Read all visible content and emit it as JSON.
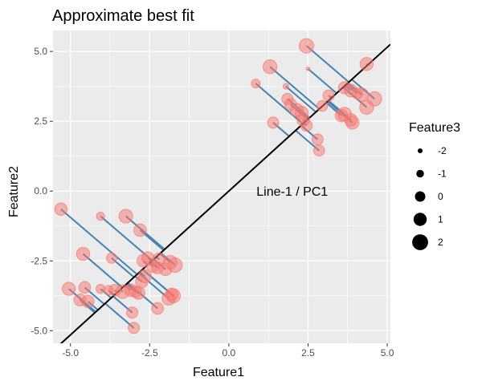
{
  "chart_data": {
    "type": "scatter",
    "title": "Approximate best fit",
    "xlabel": "Feature1",
    "ylabel": "Feature2",
    "xlim": [
      -5.55,
      5.1
    ],
    "ylim": [
      -5.45,
      5.75
    ],
    "x_ticks": [
      -5.0,
      -2.5,
      0.0,
      2.5,
      5.0
    ],
    "x_tick_labels": [
      "-5.0",
      "-2.5",
      "0.0",
      "2.5",
      "5.0"
    ],
    "y_ticks": [
      -5.0,
      -2.5,
      0.0,
      2.5,
      5.0
    ],
    "y_tick_labels": [
      "-5.0",
      "-2.5",
      "0.0",
      "2.5",
      "5.0"
    ],
    "grid": true,
    "background": "#ebebeb",
    "point_color": "#f8766d",
    "segment_color": "#4682b4",
    "line_color": "#000000",
    "fit_line": {
      "slope": 1.03,
      "intercept": 0.0
    },
    "annotation": {
      "text": "Line-1 / PC1",
      "x": 2.0,
      "y": 0.0
    },
    "legend": {
      "title": "Feature3",
      "position": "right",
      "entries": [
        {
          "label": "-2",
          "value": -2
        },
        {
          "label": "-1",
          "value": -1
        },
        {
          "label": "0",
          "value": 0
        },
        {
          "label": "1",
          "value": 1
        },
        {
          "label": "2",
          "value": 2
        }
      ]
    },
    "size_range": [
      -2.6,
      2.4
    ],
    "points": [
      {
        "x": 2.45,
        "y": 5.2,
        "size": 1.5
      },
      {
        "x": 1.3,
        "y": 4.45,
        "size": 1.3
      },
      {
        "x": 4.35,
        "y": 4.55,
        "size": 1.0
      },
      {
        "x": 2.5,
        "y": 4.38,
        "size": -2.4
      },
      {
        "x": 0.85,
        "y": 3.85,
        "size": -0.6
      },
      {
        "x": 1.8,
        "y": 3.75,
        "size": -1.7
      },
      {
        "x": 3.65,
        "y": 3.7,
        "size": 0.6
      },
      {
        "x": 3.85,
        "y": 3.6,
        "size": 0.9
      },
      {
        "x": 4.05,
        "y": 3.5,
        "size": 0.2
      },
      {
        "x": 4.2,
        "y": 3.45,
        "size": 1.0
      },
      {
        "x": 3.15,
        "y": 3.42,
        "size": 0.3
      },
      {
        "x": 4.6,
        "y": 3.3,
        "size": 1.4
      },
      {
        "x": 1.85,
        "y": 3.3,
        "size": 0.3
      },
      {
        "x": 1.95,
        "y": 3.1,
        "size": 0.6
      },
      {
        "x": 2.95,
        "y": 3.05,
        "size": 0.1
      },
      {
        "x": 4.35,
        "y": 3.0,
        "size": 1.3
      },
      {
        "x": 2.15,
        "y": 2.9,
        "size": 1.0
      },
      {
        "x": 2.3,
        "y": 2.8,
        "size": 1.0
      },
      {
        "x": 3.65,
        "y": 2.75,
        "size": 1.3
      },
      {
        "x": 3.55,
        "y": 2.7,
        "size": 0.7
      },
      {
        "x": 2.35,
        "y": 2.55,
        "size": 0.8
      },
      {
        "x": 3.85,
        "y": 2.55,
        "size": 0.8
      },
      {
        "x": 1.4,
        "y": 2.45,
        "size": 0.3
      },
      {
        "x": 3.9,
        "y": 2.45,
        "size": 1.0
      },
      {
        "x": 2.45,
        "y": 2.35,
        "size": 0.5
      },
      {
        "x": 2.8,
        "y": 1.85,
        "size": 0.3
      },
      {
        "x": 2.85,
        "y": 1.45,
        "size": 0.2
      },
      {
        "x": -5.3,
        "y": -0.65,
        "size": 0.7
      },
      {
        "x": -4.05,
        "y": -0.9,
        "size": -0.8
      },
      {
        "x": -3.25,
        "y": -0.9,
        "size": 1.2
      },
      {
        "x": -2.8,
        "y": -1.4,
        "size": 0.8
      },
      {
        "x": -4.6,
        "y": -2.25,
        "size": 1.0
      },
      {
        "x": -3.7,
        "y": -2.4,
        "size": 0.0
      },
      {
        "x": -2.55,
        "y": -2.4,
        "size": 0.8
      },
      {
        "x": -2.2,
        "y": -2.45,
        "size": 1.0
      },
      {
        "x": -2.7,
        "y": -2.5,
        "size": 0.8
      },
      {
        "x": -1.85,
        "y": -2.55,
        "size": 1.2
      },
      {
        "x": -1.7,
        "y": -2.65,
        "size": 1.5
      },
      {
        "x": -2.4,
        "y": -2.7,
        "size": 0.5
      },
      {
        "x": -2.25,
        "y": -2.75,
        "size": 0.5
      },
      {
        "x": -2.0,
        "y": -2.8,
        "size": 0.8
      },
      {
        "x": -2.65,
        "y": -3.05,
        "size": 1.0
      },
      {
        "x": -2.75,
        "y": -3.25,
        "size": 0.7
      },
      {
        "x": -5.05,
        "y": -3.5,
        "size": 1.0
      },
      {
        "x": -4.55,
        "y": -3.45,
        "size": 0.5
      },
      {
        "x": -4.05,
        "y": -3.5,
        "size": -0.5
      },
      {
        "x": -3.8,
        "y": -3.55,
        "size": -0.3
      },
      {
        "x": -3.6,
        "y": -3.55,
        "size": 0.5
      },
      {
        "x": -3.35,
        "y": -3.6,
        "size": 1.2
      },
      {
        "x": -3.1,
        "y": -3.55,
        "size": 0.7
      },
      {
        "x": -2.95,
        "y": -3.6,
        "size": 0.5
      },
      {
        "x": -2.85,
        "y": -3.65,
        "size": 0.8
      },
      {
        "x": -1.8,
        "y": -3.7,
        "size": 0.8
      },
      {
        "x": -1.75,
        "y": -3.75,
        "size": 1.3
      },
      {
        "x": -1.9,
        "y": -3.85,
        "size": 1.0
      },
      {
        "x": -4.7,
        "y": -3.9,
        "size": 0.6
      },
      {
        "x": -4.45,
        "y": -3.95,
        "size": 0.7
      },
      {
        "x": -2.25,
        "y": -4.2,
        "size": 0.5
      },
      {
        "x": -3.05,
        "y": -4.35,
        "size": 0.3
      },
      {
        "x": -3.0,
        "y": -4.9,
        "size": 0.3
      }
    ]
  }
}
